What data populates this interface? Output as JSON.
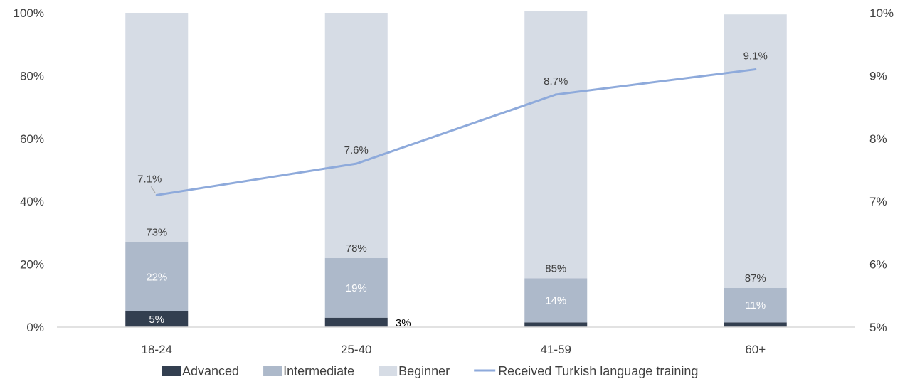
{
  "chart_data": {
    "type": "bar",
    "stacked": true,
    "categories": [
      "18-24",
      "25-40",
      "41-59",
      "60+"
    ],
    "series": [
      {
        "name": "Advanced",
        "values": [
          5,
          3,
          1.5,
          1.5
        ],
        "labels": [
          "5%",
          "3%",
          "",
          ""
        ],
        "color": "#333f50"
      },
      {
        "name": "Intermediate",
        "values": [
          22,
          19,
          14,
          11
        ],
        "labels": [
          "22%",
          "19%",
          "14%",
          "11%"
        ],
        "color": "#adb9ca"
      },
      {
        "name": "Beginner",
        "values": [
          73,
          78,
          85,
          87
        ],
        "labels": [
          "73%",
          "78%",
          "85%",
          "87%"
        ],
        "color": "#d6dce5"
      }
    ],
    "line_series": {
      "name": "Received Turkish language training",
      "values": [
        7.1,
        7.6,
        8.7,
        9.1
      ],
      "labels": [
        "7.1%",
        "7.6%",
        "8.7%",
        "9.1%"
      ],
      "color": "#8eaadb",
      "axis": "right"
    },
    "y_left": {
      "min": 0,
      "max": 100,
      "ticks": [
        "0%",
        "20%",
        "40%",
        "60%",
        "80%",
        "100%"
      ]
    },
    "y_right": {
      "min": 5,
      "max": 10,
      "ticks": [
        "5%",
        "6%",
        "7%",
        "8%",
        "9%",
        "10%"
      ]
    },
    "legend_position": "bottom",
    "grid": false
  }
}
